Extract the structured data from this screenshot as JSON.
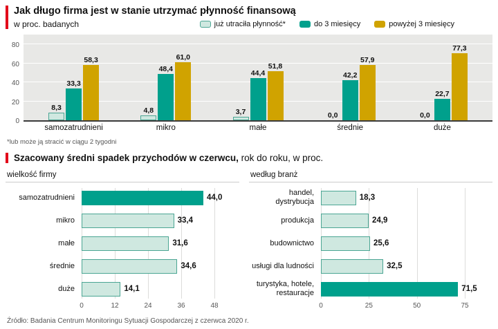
{
  "colors": {
    "accent_red": "#e2001a",
    "mint": "#cfe8e0",
    "mint_border": "#4aa593",
    "teal": "#00a08c",
    "gold": "#d0a300",
    "chart_bg": "#e8e8e6"
  },
  "section1": {
    "title": "Jak długo firma jest w stanie utrzymać płynność finansową",
    "subtitle": "w proc. badanych",
    "legend": [
      {
        "label": "już utraciła płynność*",
        "color_key": "mint"
      },
      {
        "label": "do 3 miesięcy",
        "color_key": "teal"
      },
      {
        "label": "powyżej 3 miesięcy",
        "color_key": "gold"
      }
    ],
    "footnote": "*lub może ją stracić w ciągu 2 tygodni"
  },
  "section2": {
    "title_bold": "Szacowany średni spadek przychodów w czerwcu,",
    "title_rest": " rok do roku, w proc.",
    "source": "Źródło: Badania Centrum Monitoringu Sytuacji Gospodarczej z czerwca 2020 r."
  },
  "chart_data": [
    {
      "type": "bar",
      "title": "Jak długo firma jest w stanie utrzymać płynność finansową",
      "subtitle": "w proc. badanych",
      "categories": [
        "samozatrudnieni",
        "mikro",
        "małe",
        "średnie",
        "duże"
      ],
      "series": [
        {
          "name": "już utraciła płynność*",
          "color_key": "mint",
          "values": [
            8.3,
            4.8,
            3.7,
            0.0,
            0.0
          ]
        },
        {
          "name": "do 3 miesięcy",
          "color_key": "teal",
          "values": [
            33.3,
            48.4,
            44.4,
            42.2,
            22.7
          ]
        },
        {
          "name": "powyżej 3 miesięcy",
          "color_key": "gold",
          "values": [
            58.3,
            61.0,
            51.8,
            57.9,
            77.3
          ]
        }
      ],
      "ylim": [
        0,
        80
      ],
      "yticks": [
        0,
        20,
        40,
        60,
        80
      ],
      "legend_position": "top",
      "grid": true
    },
    {
      "type": "bar",
      "orientation": "horizontal",
      "title": "wielkość firmy",
      "categories": [
        "samozatrudnieni",
        "mikro",
        "małe",
        "średnie",
        "duże"
      ],
      "values": [
        44.0,
        33.4,
        31.6,
        34.6,
        14.1
      ],
      "highlight_index": 0,
      "xlim": [
        0,
        48
      ],
      "xticks": [
        0,
        12,
        24,
        36,
        48
      ],
      "grid": true
    },
    {
      "type": "bar",
      "orientation": "horizontal",
      "title": "według branż",
      "categories": [
        "handel, dystrybucja",
        "produkcja",
        "budownictwo",
        "usługi dla ludności",
        "turystyka, hotele, restauracje"
      ],
      "values": [
        18.3,
        24.9,
        25.6,
        32.5,
        71.5
      ],
      "highlight_index": 4,
      "xlim": [
        0,
        75
      ],
      "xticks": [
        0,
        25,
        50,
        75
      ],
      "grid": true
    }
  ]
}
